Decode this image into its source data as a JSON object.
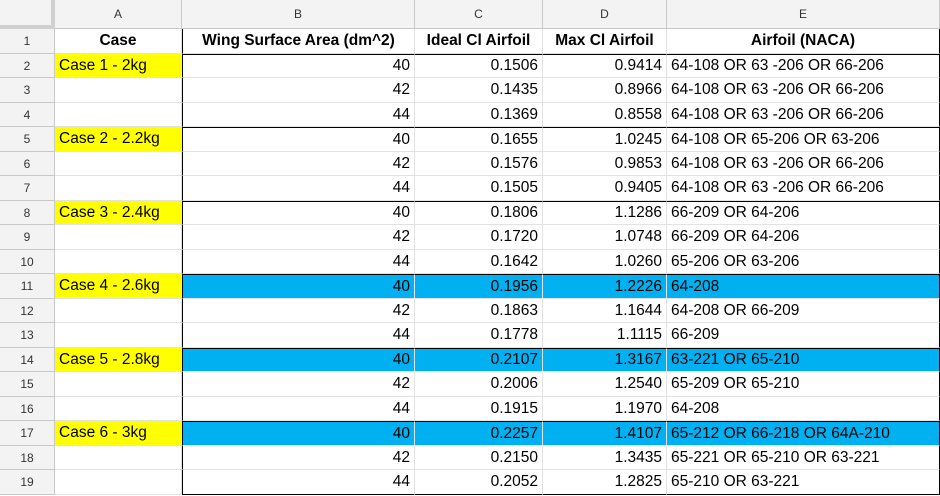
{
  "columns": [
    "A",
    "B",
    "C",
    "D",
    "E"
  ],
  "header_row": {
    "row_number": "1",
    "cells": [
      "Case",
      "Wing Surface Area (dm^2)",
      "Ideal Cl Airfoil",
      "Max Cl Airfoil",
      "Airfoil (NACA)"
    ]
  },
  "rows": [
    {
      "n": "2",
      "case": "Case 1 - 2kg",
      "area": "40",
      "ideal": "0.1506",
      "max": "0.9414",
      "airfoil": "64-108 OR 63 -206 OR 66-206"
    },
    {
      "n": "3",
      "case": "",
      "area": "42",
      "ideal": "0.1435",
      "max": "0.8966",
      "airfoil": "64-108 OR 63 -206 OR 66-206"
    },
    {
      "n": "4",
      "case": "",
      "area": "44",
      "ideal": "0.1369",
      "max": "0.8558",
      "airfoil": "64-108 OR 63 -206 OR 66-206"
    },
    {
      "n": "5",
      "case": "Case 2 - 2.2kg",
      "area": "40",
      "ideal": "0.1655",
      "max": "1.0245",
      "airfoil": "64-108 OR 65-206 OR 63-206"
    },
    {
      "n": "6",
      "case": "",
      "area": "42",
      "ideal": "0.1576",
      "max": "0.9853",
      "airfoil": "64-108 OR 63 -206 OR 66-206"
    },
    {
      "n": "7",
      "case": "",
      "area": "44",
      "ideal": "0.1505",
      "max": "0.9405",
      "airfoil": "64-108 OR 63 -206 OR 66-206"
    },
    {
      "n": "8",
      "case": "Case 3 - 2.4kg",
      "area": "40",
      "ideal": "0.1806",
      "max": "1.1286",
      "airfoil": "66-209 OR 64-206"
    },
    {
      "n": "9",
      "case": "",
      "area": "42",
      "ideal": "0.1720",
      "max": "1.0748",
      "airfoil": "66-209 OR 64-206"
    },
    {
      "n": "10",
      "case": "",
      "area": "44",
      "ideal": "0.1642",
      "max": "1.0260",
      "airfoil": "65-206 OR 63-206"
    },
    {
      "n": "11",
      "case": "Case 4 - 2.6kg",
      "area": "40",
      "ideal": "0.1956",
      "max": "1.2226",
      "airfoil": "64-208"
    },
    {
      "n": "12",
      "case": "",
      "area": "42",
      "ideal": "0.1863",
      "max": "1.1644",
      "airfoil": "64-208 OR 66-209"
    },
    {
      "n": "13",
      "case": "",
      "area": "44",
      "ideal": "0.1778",
      "max": "1.1115",
      "airfoil": "66-209"
    },
    {
      "n": "14",
      "case": "Case 5 - 2.8kg",
      "area": "40",
      "ideal": "0.2107",
      "max": "1.3167",
      "airfoil": "63-221 OR 65-210"
    },
    {
      "n": "15",
      "case": "",
      "area": "42",
      "ideal": "0.2006",
      "max": "1.2540",
      "airfoil": "65-209 OR 65-210"
    },
    {
      "n": "16",
      "case": "",
      "area": "44",
      "ideal": "0.1915",
      "max": "1.1970",
      "airfoil": "64-208"
    },
    {
      "n": "17",
      "case": "Case 6 - 3kg",
      "area": "40",
      "ideal": "0.2257",
      "max": "1.4107",
      "airfoil": "65-212 OR 66-218 OR 64A-210"
    },
    {
      "n": "18",
      "case": "",
      "area": "42",
      "ideal": "0.2150",
      "max": "1.3435",
      "airfoil": "65-221 OR 65-210 OR 63-221"
    },
    {
      "n": "19",
      "case": "",
      "area": "44",
      "ideal": "0.2052",
      "max": "1.2825",
      "airfoil": "65-210 OR 63-221"
    }
  ],
  "highlight_rows": [
    "11",
    "14",
    "17"
  ],
  "colors": {
    "case_label": "#ffff00",
    "highlight": "#00b0f0",
    "header_bg": "#f3f3f3",
    "gridline": "#e2e2e2"
  }
}
